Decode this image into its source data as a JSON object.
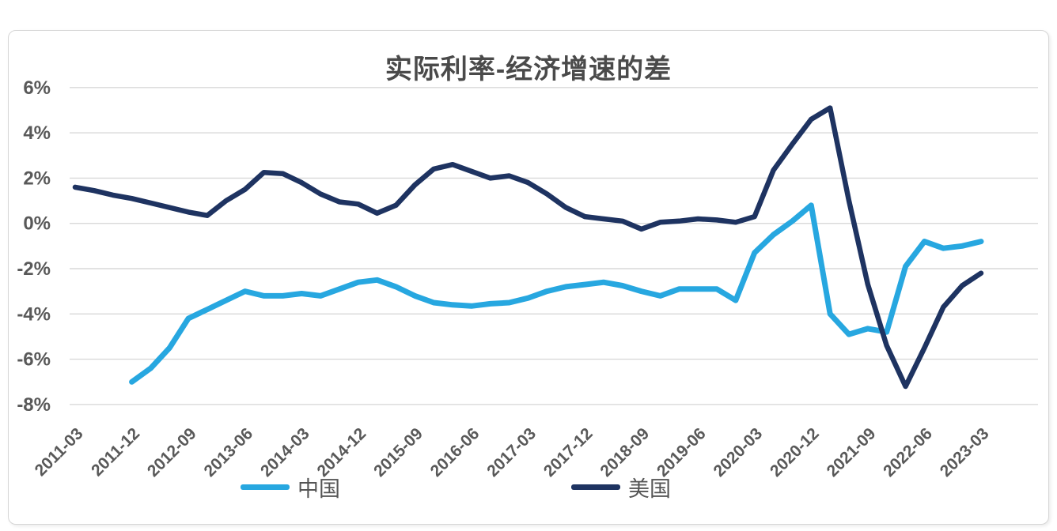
{
  "chart": {
    "title": "实际利率-经济增速的差",
    "colors": {
      "text": "#595959",
      "grid": "#d9d9d9",
      "frame_border": "#d6d6d6"
    }
  },
  "chart_data": {
    "type": "line",
    "title": "实际利率-经济增速的差",
    "xlabel": "",
    "ylabel": "",
    "ylim": [
      -8,
      6
    ],
    "y_tick_step": 2,
    "y_tick_labels": [
      "6%",
      "4%",
      "2%",
      "0%",
      "-2%",
      "-4%",
      "-6%",
      "-8%"
    ],
    "grid": true,
    "grid_color": "#d9d9d9",
    "legend_position": "bottom",
    "x_tick_every": 3,
    "x_axis_tick_labels": [
      "2011-03",
      "2011-12",
      "2012-09",
      "2013-06",
      "2014-03",
      "2014-12",
      "2015-09",
      "2016-06",
      "2017-03",
      "2017-12",
      "2018-09",
      "2019-06",
      "2020-03",
      "2020-12",
      "2021-09",
      "2022-06",
      "2023-03"
    ],
    "categories": [
      "2011-03",
      "2011-06",
      "2011-09",
      "2011-12",
      "2012-03",
      "2012-06",
      "2012-09",
      "2012-12",
      "2013-03",
      "2013-06",
      "2013-09",
      "2013-12",
      "2014-03",
      "2014-06",
      "2014-09",
      "2014-12",
      "2015-03",
      "2015-06",
      "2015-09",
      "2015-12",
      "2016-03",
      "2016-06",
      "2016-09",
      "2016-12",
      "2017-03",
      "2017-06",
      "2017-09",
      "2017-12",
      "2018-03",
      "2018-06",
      "2018-09",
      "2018-12",
      "2019-03",
      "2019-06",
      "2019-09",
      "2019-12",
      "2020-03",
      "2020-06",
      "2020-09",
      "2020-12",
      "2021-03",
      "2021-06",
      "2021-09",
      "2021-12",
      "2022-03",
      "2022-06",
      "2022-09",
      "2022-12",
      "2023-03"
    ],
    "series": [
      {
        "name": "中国",
        "color": "#27a7e0",
        "values": [
          null,
          null,
          null,
          -7.0,
          -6.4,
          -5.5,
          -4.2,
          -3.8,
          -3.4,
          -3.0,
          -3.2,
          -3.2,
          -3.1,
          -3.2,
          -2.9,
          -2.6,
          -2.5,
          -2.8,
          -3.2,
          -3.5,
          -3.6,
          -3.65,
          -3.55,
          -3.5,
          -3.3,
          -3.0,
          -2.8,
          -2.7,
          -2.6,
          -2.75,
          -3.0,
          -3.2,
          -2.9,
          -2.9,
          -2.9,
          -3.4,
          -1.3,
          -0.5,
          0.1,
          0.8,
          -4.0,
          -4.9,
          -4.65,
          -4.8,
          -1.9,
          -0.8,
          -1.1,
          -1.0,
          -0.8
        ]
      },
      {
        "name": "美国",
        "color": "#1e3361",
        "values": [
          1.6,
          1.45,
          1.25,
          1.1,
          0.9,
          0.7,
          0.5,
          0.35,
          1.0,
          1.5,
          2.25,
          2.2,
          1.8,
          1.3,
          0.95,
          0.85,
          0.45,
          0.8,
          1.7,
          2.4,
          2.6,
          2.3,
          2.0,
          2.1,
          1.8,
          1.3,
          0.7,
          0.3,
          0.2,
          0.1,
          -0.25,
          0.05,
          0.1,
          0.2,
          0.15,
          0.05,
          0.3,
          2.35,
          3.5,
          4.6,
          5.1,
          1.0,
          -2.7,
          -5.4,
          -7.2,
          -5.5,
          -3.7,
          -2.75,
          -2.2
        ]
      }
    ]
  }
}
